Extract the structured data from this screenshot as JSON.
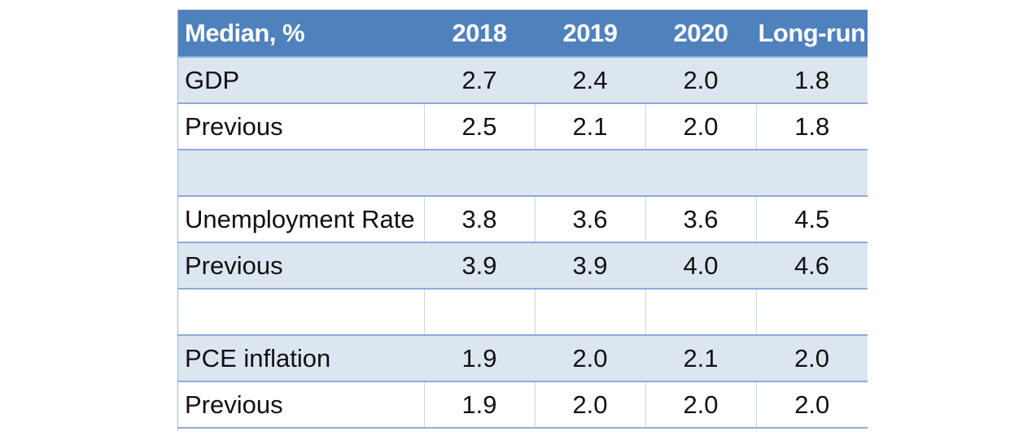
{
  "chart_data": {
    "type": "table",
    "columns": [
      "Median, %",
      "2018",
      "2019",
      "2020",
      "Long-run"
    ],
    "rows": [
      {
        "label": "GDP",
        "values": [
          "2.7",
          "2.4",
          "2.0",
          "1.8"
        ],
        "style": "band"
      },
      {
        "label": "Previous",
        "values": [
          "2.5",
          "2.1",
          "2.0",
          "1.8"
        ],
        "style": "plain"
      },
      {
        "label": "",
        "values": [
          "",
          "",
          "",
          ""
        ],
        "style": "band"
      },
      {
        "label": "Unemployment Rate",
        "values": [
          "3.8",
          "3.6",
          "3.6",
          "4.5"
        ],
        "style": "plain"
      },
      {
        "label": "Previous",
        "values": [
          "3.9",
          "3.9",
          "4.0",
          "4.6"
        ],
        "style": "band"
      },
      {
        "label": "",
        "values": [
          "",
          "",
          "",
          ""
        ],
        "style": "plain"
      },
      {
        "label": "PCE inflation",
        "values": [
          "1.9",
          "2.0",
          "2.1",
          "2.0"
        ],
        "style": "band"
      },
      {
        "label": "Previous",
        "values": [
          "1.9",
          "2.0",
          "2.0",
          "2.0"
        ],
        "style": "plain"
      }
    ]
  },
  "colors": {
    "header_bg": "#4f81bd",
    "header_text": "#ffffff",
    "band_bg": "#dce6f1",
    "plain_bg": "#ffffff",
    "rule": "#8eaadb"
  }
}
